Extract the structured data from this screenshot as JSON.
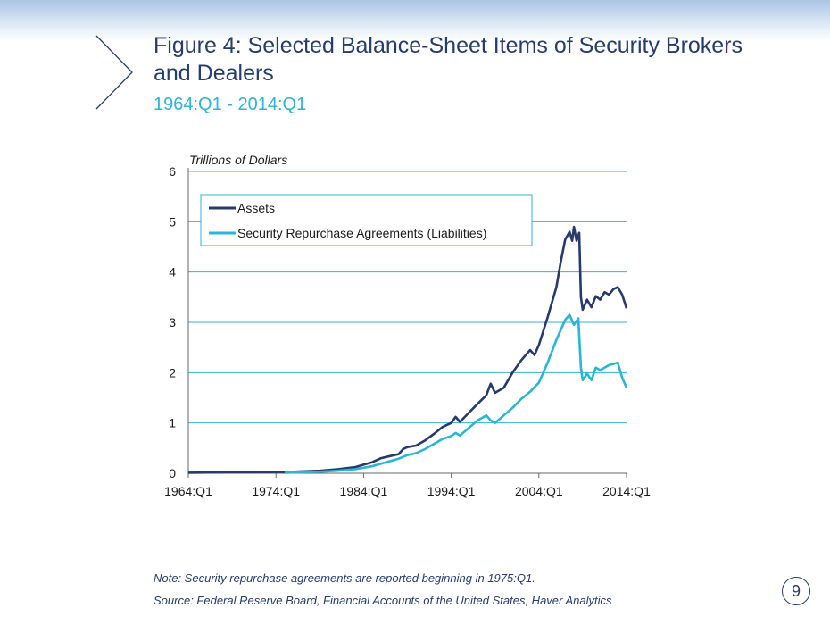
{
  "slide": {
    "title": "Figure 4:  Selected Balance-Sheet Items of Security Brokers and Dealers",
    "subtitle": "1964:Q1 - 2014:Q1",
    "note": "Note:  Security repurchase agreements are reported beginning in 1975:Q1.",
    "source": "Source:  Federal Reserve Board, Financial Accounts of the United States, Haver Analytics",
    "page_number": "9"
  },
  "chart_data": {
    "type": "line",
    "ylabel": "Trillions of Dollars",
    "xlim": [
      1964,
      2014
    ],
    "ylim": [
      0,
      6
    ],
    "yticks": [
      0,
      1,
      2,
      3,
      4,
      5,
      6
    ],
    "xticks": [
      {
        "value": 1964,
        "label": "1964:Q1"
      },
      {
        "value": 1974,
        "label": "1974:Q1"
      },
      {
        "value": 1984,
        "label": "1984:Q1"
      },
      {
        "value": 1994,
        "label": "1994:Q1"
      },
      {
        "value": 2004,
        "label": "2004:Q1"
      },
      {
        "value": 2014,
        "label": "2014:Q1"
      }
    ],
    "grid": "horizontal",
    "legend": "top-left",
    "series": [
      {
        "name": "Assets",
        "color": "#263a6e",
        "points": [
          [
            1964,
            0.01
          ],
          [
            1968,
            0.02
          ],
          [
            1972,
            0.02
          ],
          [
            1976,
            0.03
          ],
          [
            1979,
            0.05
          ],
          [
            1981,
            0.08
          ],
          [
            1983,
            0.12
          ],
          [
            1984,
            0.17
          ],
          [
            1985,
            0.22
          ],
          [
            1986,
            0.3
          ],
          [
            1987,
            0.34
          ],
          [
            1988,
            0.38
          ],
          [
            1988.5,
            0.48
          ],
          [
            1989,
            0.52
          ],
          [
            1990,
            0.55
          ],
          [
            1991,
            0.65
          ],
          [
            1992,
            0.78
          ],
          [
            1993,
            0.92
          ],
          [
            1994,
            1.0
          ],
          [
            1994.5,
            1.12
          ],
          [
            1995,
            1.02
          ],
          [
            1996,
            1.2
          ],
          [
            1997,
            1.38
          ],
          [
            1998,
            1.55
          ],
          [
            1998.5,
            1.78
          ],
          [
            1999,
            1.6
          ],
          [
            2000,
            1.7
          ],
          [
            2001,
            2.0
          ],
          [
            2002,
            2.25
          ],
          [
            2003,
            2.45
          ],
          [
            2003.5,
            2.35
          ],
          [
            2004,
            2.55
          ],
          [
            2005,
            3.1
          ],
          [
            2006,
            3.7
          ],
          [
            2006.5,
            4.2
          ],
          [
            2007,
            4.65
          ],
          [
            2007.5,
            4.8
          ],
          [
            2007.8,
            4.62
          ],
          [
            2008,
            4.9
          ],
          [
            2008.3,
            4.62
          ],
          [
            2008.6,
            4.78
          ],
          [
            2008.8,
            3.5
          ],
          [
            2009,
            3.25
          ],
          [
            2009.5,
            3.45
          ],
          [
            2010,
            3.3
          ],
          [
            2010.5,
            3.52
          ],
          [
            2011,
            3.45
          ],
          [
            2011.5,
            3.6
          ],
          [
            2012,
            3.55
          ],
          [
            2012.5,
            3.66
          ],
          [
            2013,
            3.7
          ],
          [
            2013.5,
            3.55
          ],
          [
            2014,
            3.28
          ]
        ]
      },
      {
        "name": "Security Repurchase Agreements (Liabilities)",
        "color": "#2ab6d2",
        "points": [
          [
            1975,
            0.01
          ],
          [
            1979,
            0.03
          ],
          [
            1981,
            0.05
          ],
          [
            1983,
            0.08
          ],
          [
            1984,
            0.11
          ],
          [
            1985,
            0.14
          ],
          [
            1986,
            0.19
          ],
          [
            1987,
            0.24
          ],
          [
            1988,
            0.29
          ],
          [
            1989,
            0.36
          ],
          [
            1990,
            0.4
          ],
          [
            1991,
            0.48
          ],
          [
            1992,
            0.58
          ],
          [
            1993,
            0.68
          ],
          [
            1994,
            0.74
          ],
          [
            1994.5,
            0.8
          ],
          [
            1995,
            0.75
          ],
          [
            1996,
            0.9
          ],
          [
            1997,
            1.05
          ],
          [
            1998,
            1.15
          ],
          [
            1998.5,
            1.05
          ],
          [
            1999,
            1.0
          ],
          [
            2000,
            1.15
          ],
          [
            2001,
            1.3
          ],
          [
            2002,
            1.48
          ],
          [
            2003,
            1.62
          ],
          [
            2004,
            1.8
          ],
          [
            2005,
            2.2
          ],
          [
            2006,
            2.65
          ],
          [
            2007,
            3.05
          ],
          [
            2007.5,
            3.15
          ],
          [
            2008,
            2.95
          ],
          [
            2008.5,
            3.08
          ],
          [
            2008.8,
            2.1
          ],
          [
            2009,
            1.85
          ],
          [
            2009.5,
            1.98
          ],
          [
            2010,
            1.85
          ],
          [
            2010.5,
            2.1
          ],
          [
            2011,
            2.05
          ],
          [
            2012,
            2.15
          ],
          [
            2013,
            2.2
          ],
          [
            2013.5,
            1.9
          ],
          [
            2014,
            1.7
          ]
        ]
      }
    ]
  }
}
